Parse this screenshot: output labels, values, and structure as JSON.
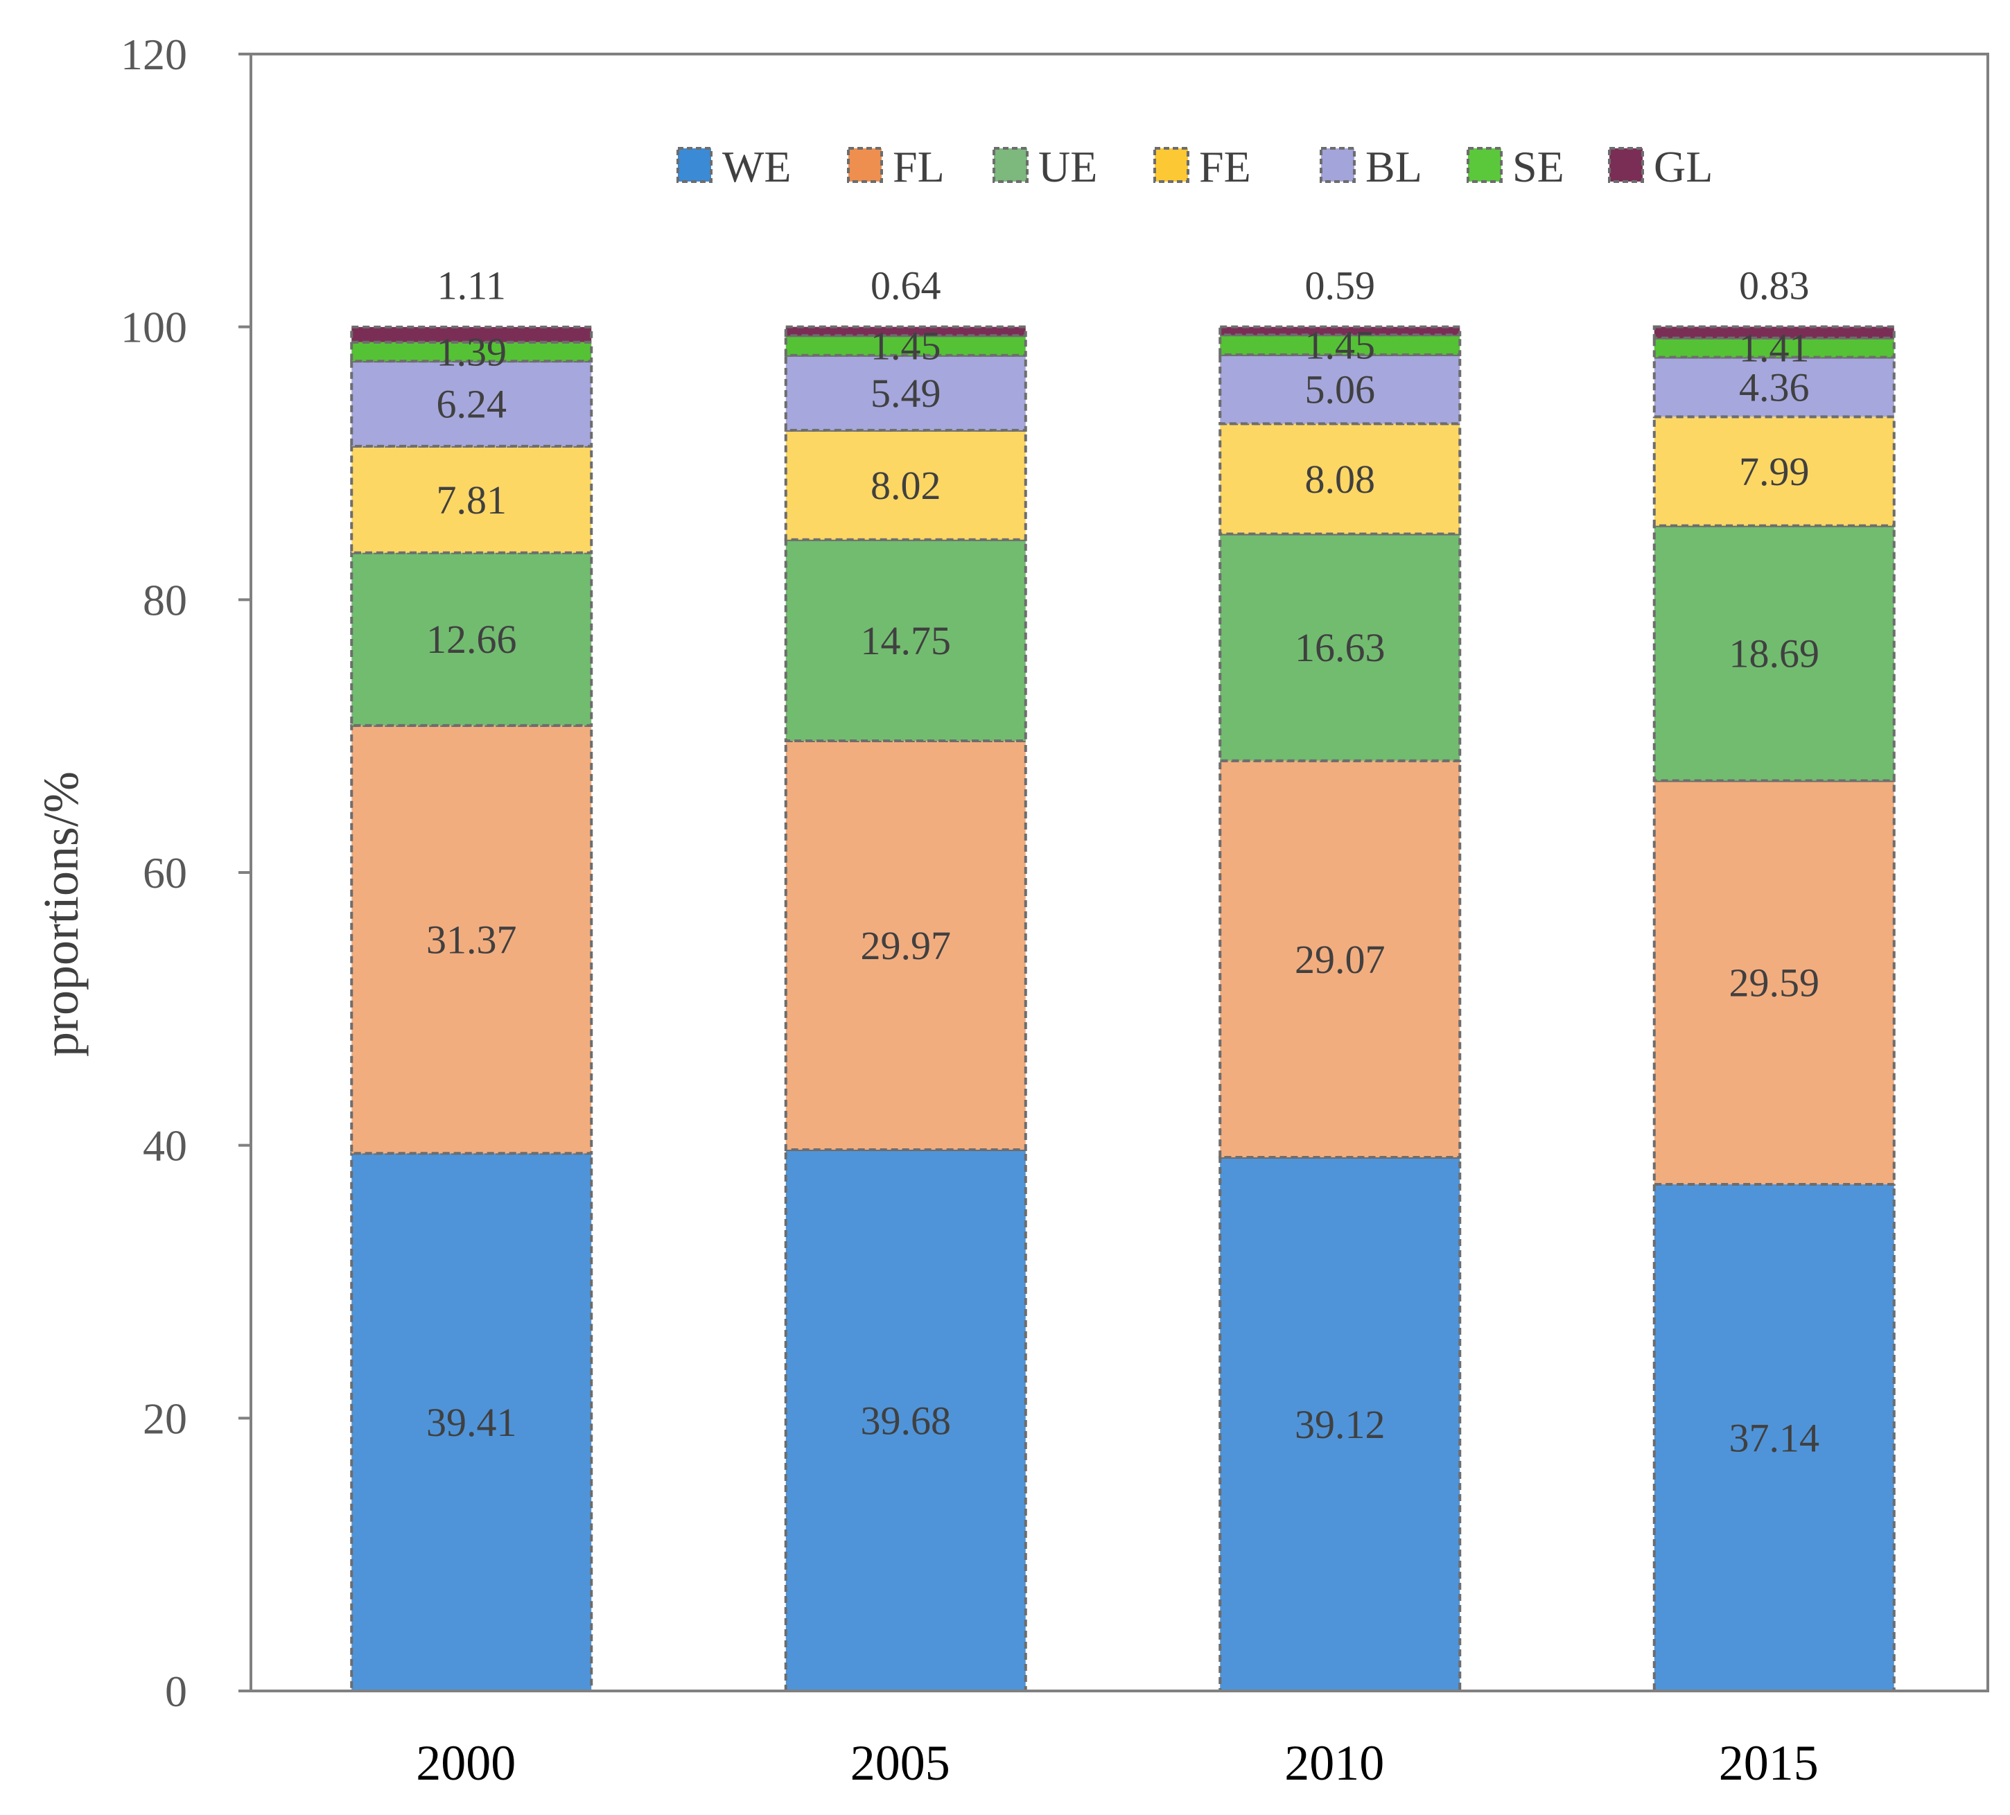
{
  "chart_data": {
    "type": "bar",
    "stacked": true,
    "title": "",
    "xlabel": "",
    "ylabel": "proportions/%",
    "ylim": [
      0,
      120
    ],
    "yticks": [
      0,
      20,
      40,
      60,
      80,
      100,
      120
    ],
    "grid": false,
    "legend_position": "top-center",
    "categories": [
      "2000",
      "2005",
      "2010",
      "2015"
    ],
    "series": [
      {
        "name": "WE",
        "color": "#4F94D9",
        "values": [
          39.41,
          39.68,
          39.12,
          37.14
        ]
      },
      {
        "name": "FL",
        "color": "#F2AD7F",
        "values": [
          31.37,
          29.97,
          29.07,
          29.59
        ]
      },
      {
        "name": "UE",
        "color": "#72BC70",
        "values": [
          12.66,
          14.75,
          16.63,
          18.69
        ]
      },
      {
        "name": "FE",
        "color": "#FDD764",
        "values": [
          7.81,
          8.02,
          8.08,
          7.99
        ]
      },
      {
        "name": "BL",
        "color": "#A6A7DC",
        "values": [
          6.24,
          5.49,
          5.06,
          4.36
        ]
      },
      {
        "name": "SE",
        "color": "#55C236",
        "values": [
          1.39,
          1.45,
          1.45,
          1.41
        ]
      },
      {
        "name": "GL",
        "color": "#7A2E55",
        "values": [
          1.11,
          0.64,
          0.59,
          0.83
        ]
      }
    ],
    "legend_colors": {
      "WE": "#3B8AD6",
      "FL": "#EE8F4F",
      "UE": "#7DB87D",
      "FE": "#FCC935",
      "BL": "#A3A4DA",
      "SE": "#5BC83C",
      "GL": "#7A2E55"
    }
  }
}
